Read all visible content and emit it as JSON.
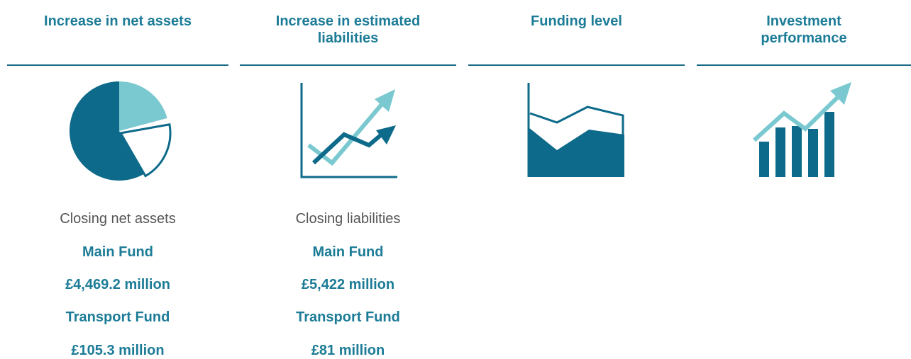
{
  "columns": [
    {
      "title": "Increase in net assets",
      "caption": "Closing net assets",
      "lines": [
        "Main Fund",
        "£4,469.2 million",
        "Transport Fund",
        "£105.3 million"
      ]
    },
    {
      "title": "Increase in estimated liabilities",
      "caption": "Closing liabilities",
      "lines": [
        "Main Fund",
        "£5,422 million",
        "Transport Fund",
        "£81 million"
      ]
    },
    {
      "title": "Funding level"
    },
    {
      "title": "Investment performance"
    }
  ]
}
